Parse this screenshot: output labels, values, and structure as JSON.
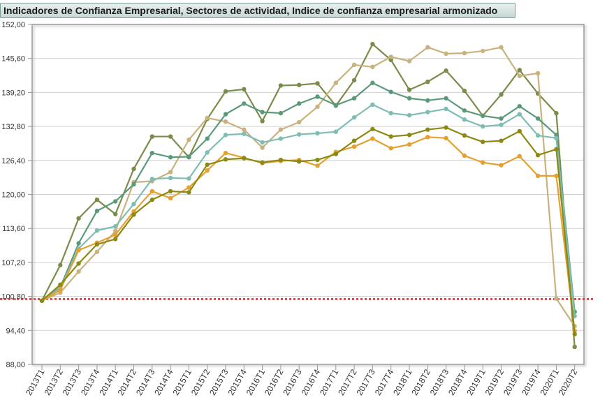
{
  "chart_data": {
    "type": "line",
    "title": "Indicadores de Confianza Empresarial, Sectores de actividad, Indice de confianza empresarial armonizado",
    "categories": [
      "2013T1",
      "2013T2",
      "2013T3",
      "2013T4",
      "2014T1",
      "2014T2",
      "2014T3",
      "2014T4",
      "2015T1",
      "2015T2",
      "2015T3",
      "2015T4",
      "2016T1",
      "2016T2",
      "2016T3",
      "2016T4",
      "2017T1",
      "2017T2",
      "2017T3",
      "2017T4",
      "2018T1",
      "2018T2",
      "2018T3",
      "2018T4",
      "2019T1",
      "2019T2",
      "2019T3",
      "2019T4",
      "2020T1",
      "2020T2"
    ],
    "x_tick_labels": [
      "2013T1",
      "2013T2",
      "2013T3",
      "2013T4",
      "2014T1",
      "2014T2",
      "2014T3",
      "2014T4",
      "2015T1",
      "2015T2",
      "2015T3",
      "2015T4",
      "2016T1",
      "2016T2",
      "2016T3",
      "2016T4",
      "2017T1",
      "2017T2",
      "2017T3",
      "2017T4",
      "2018T1",
      "2018T2",
      "2018T3",
      "2018T4",
      "2019T1",
      "2019T2",
      "2019T3",
      "2019T4",
      "2020T1",
      "2020T2"
    ],
    "y_tick_labels": [
      "152,00",
      "145,60",
      "139,20",
      "132,80",
      "126,40",
      "120,00",
      "113,60",
      "107,20",
      "100,80",
      "94,40",
      "88,00"
    ],
    "ylim": [
      88,
      152
    ],
    "y_ticks": [
      88,
      94.4,
      100.8,
      107.2,
      113.6,
      120,
      126.4,
      132.8,
      139.2,
      145.6,
      152
    ],
    "grid": true,
    "reference_line": {
      "value": 100.3,
      "color": "#d62728",
      "style": "dotted"
    },
    "series": [
      {
        "color": "#7a8c4a",
        "values": [
          100,
          106.7,
          115.5,
          119,
          116.3,
          124.8,
          130.9,
          130.9,
          127,
          134.2,
          139.4,
          139.8,
          133.8,
          140.5,
          140.6,
          140.9,
          136.7,
          141.5,
          148.3,
          145.3,
          139.7,
          141.2,
          143.3,
          139.5,
          134.8,
          138.8,
          143.4,
          139,
          135.3,
          91.3
        ]
      },
      {
        "color": "#c8b27e",
        "values": [
          100,
          101.5,
          105.5,
          109.2,
          113.1,
          122.3,
          122.5,
          124.2,
          130.3,
          134.4,
          133.7,
          132.2,
          128.8,
          132.2,
          133.6,
          136.5,
          141,
          144.4,
          144,
          145.9,
          145.1,
          147.7,
          146.5,
          146.6,
          147,
          147.7,
          142.3,
          142.8,
          100.4,
          95.2
        ]
      },
      {
        "color": "#5a9a7a",
        "values": [
          100,
          102.5,
          110.8,
          116.9,
          118.7,
          121.9,
          127.8,
          127,
          127.1,
          130.5,
          135.1,
          137.1,
          135.5,
          135.3,
          137.1,
          138.4,
          136.8,
          138.1,
          141,
          139.3,
          138.1,
          137.7,
          138.1,
          135.8,
          134.8,
          134.3,
          136.6,
          134.3,
          131.2,
          97.9
        ]
      },
      {
        "color": "#7fbdb4",
        "values": [
          100,
          102.4,
          109.8,
          113.2,
          114,
          118.2,
          122.9,
          123.1,
          123,
          127.9,
          131.2,
          131.4,
          129.8,
          130.5,
          131.3,
          131.5,
          131.8,
          134.5,
          136.9,
          135.3,
          134.9,
          135.5,
          136.1,
          134.1,
          132.8,
          133.1,
          135.1,
          131.1,
          130.6,
          97.1
        ]
      },
      {
        "color": "#e5a030",
        "values": [
          100,
          102,
          109.5,
          110.9,
          112.4,
          116.8,
          120.6,
          119.3,
          121.3,
          124.5,
          127.8,
          126.9,
          125.9,
          126.3,
          126.5,
          125.4,
          128,
          129,
          130.5,
          128.7,
          129.4,
          130.8,
          130.6,
          127.3,
          126,
          125.5,
          127.2,
          123.5,
          123.5,
          94.3
        ]
      },
      {
        "color": "#8c8a14",
        "values": [
          100,
          103,
          107,
          110.6,
          111.6,
          116.2,
          119,
          120.6,
          120.4,
          125.6,
          126.6,
          126.8,
          126,
          126.5,
          126.2,
          126.5,
          127.6,
          130.1,
          132.3,
          130.9,
          131.2,
          132.2,
          132.6,
          131.1,
          129.9,
          130.1,
          131.9,
          127.4,
          128.5,
          93.7
        ]
      }
    ]
  }
}
